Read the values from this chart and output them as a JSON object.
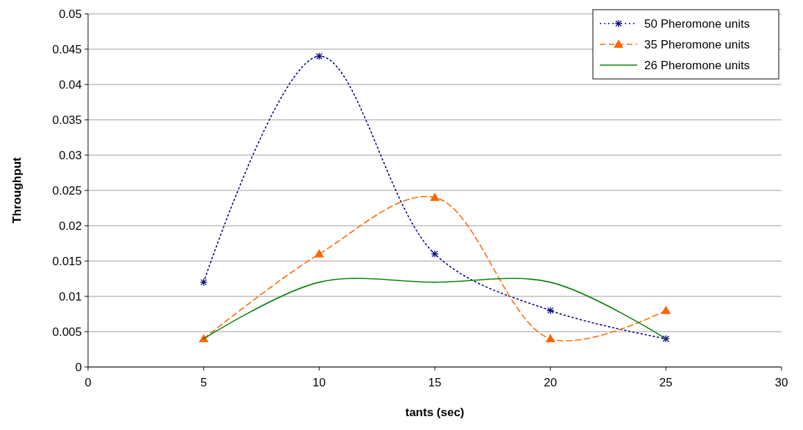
{
  "chart_data": {
    "type": "line",
    "xlabel": "tants (sec)",
    "ylabel": "Throughput",
    "x": [
      5,
      10,
      15,
      20,
      25
    ],
    "xlim": [
      0,
      30
    ],
    "xticks": [
      0,
      5,
      10,
      15,
      20,
      25,
      30
    ],
    "ylim": [
      0,
      0.05
    ],
    "yticks": [
      0,
      0.005,
      0.01,
      0.015,
      0.02,
      0.025,
      0.03,
      0.035,
      0.04,
      0.045,
      0.05
    ],
    "grid": "y",
    "legend": "top right",
    "series": [
      {
        "name": "50 Pheromone units",
        "color": "#000080",
        "values": [
          0.012,
          0.044,
          0.016,
          0.008,
          0.004
        ],
        "marker": "cross",
        "line_style": "dotted"
      },
      {
        "name": "35 Pheromone units",
        "color": "#ff6600",
        "values": [
          0.004,
          0.016,
          0.024,
          0.004,
          0.008
        ],
        "marker": "triangle",
        "line_style": "dashed"
      },
      {
        "name": "26 Pheromone units",
        "color": "#008000",
        "values": [
          0.004,
          0.012,
          0.012,
          0.012,
          0.004
        ],
        "marker": "none",
        "line_style": "solid"
      }
    ]
  }
}
